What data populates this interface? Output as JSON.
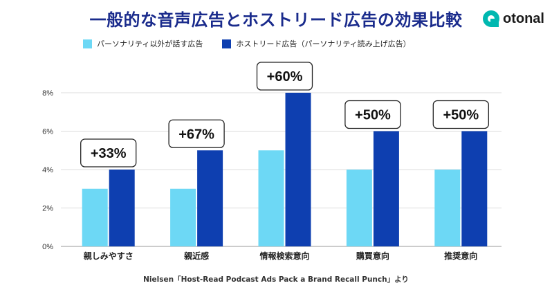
{
  "title": "一般的な音声広告とホストリード広告の効果比較",
  "logo": {
    "brand": "otonal",
    "icon": "otonal-logo-icon"
  },
  "source": "Nielsen「Host-Read Podcast Ads Pack a Brand Recall Punch」より",
  "colors": {
    "series1": "#6dd8f5",
    "series2": "#0e3fb0",
    "title": "#1a2b8c",
    "logo": "#00b8b0"
  },
  "chart_data": {
    "type": "bar",
    "title": "一般的な音声広告とホストリード広告の効果比較",
    "categories": [
      "親しみやすさ",
      "親近感",
      "情報検索意向",
      "購買意向",
      "推奨意向"
    ],
    "series": [
      {
        "name": "パーソナリティ以外が話す広告",
        "values": [
          3,
          3,
          5,
          4,
          4
        ]
      },
      {
        "name": "ホストリード広告（パーソナリティ読み上げ広告）",
        "values": [
          4,
          5,
          8,
          6,
          6
        ]
      }
    ],
    "annotations": [
      "+33%",
      "+67%",
      "+60%",
      "+50%",
      "+50%"
    ],
    "y_ticks": [
      "0%",
      "2%",
      "4%",
      "6%",
      "8%"
    ],
    "ylim": [
      0,
      8
    ],
    "grid": true,
    "legend_position": "top-left",
    "xlabel": "",
    "ylabel": ""
  }
}
